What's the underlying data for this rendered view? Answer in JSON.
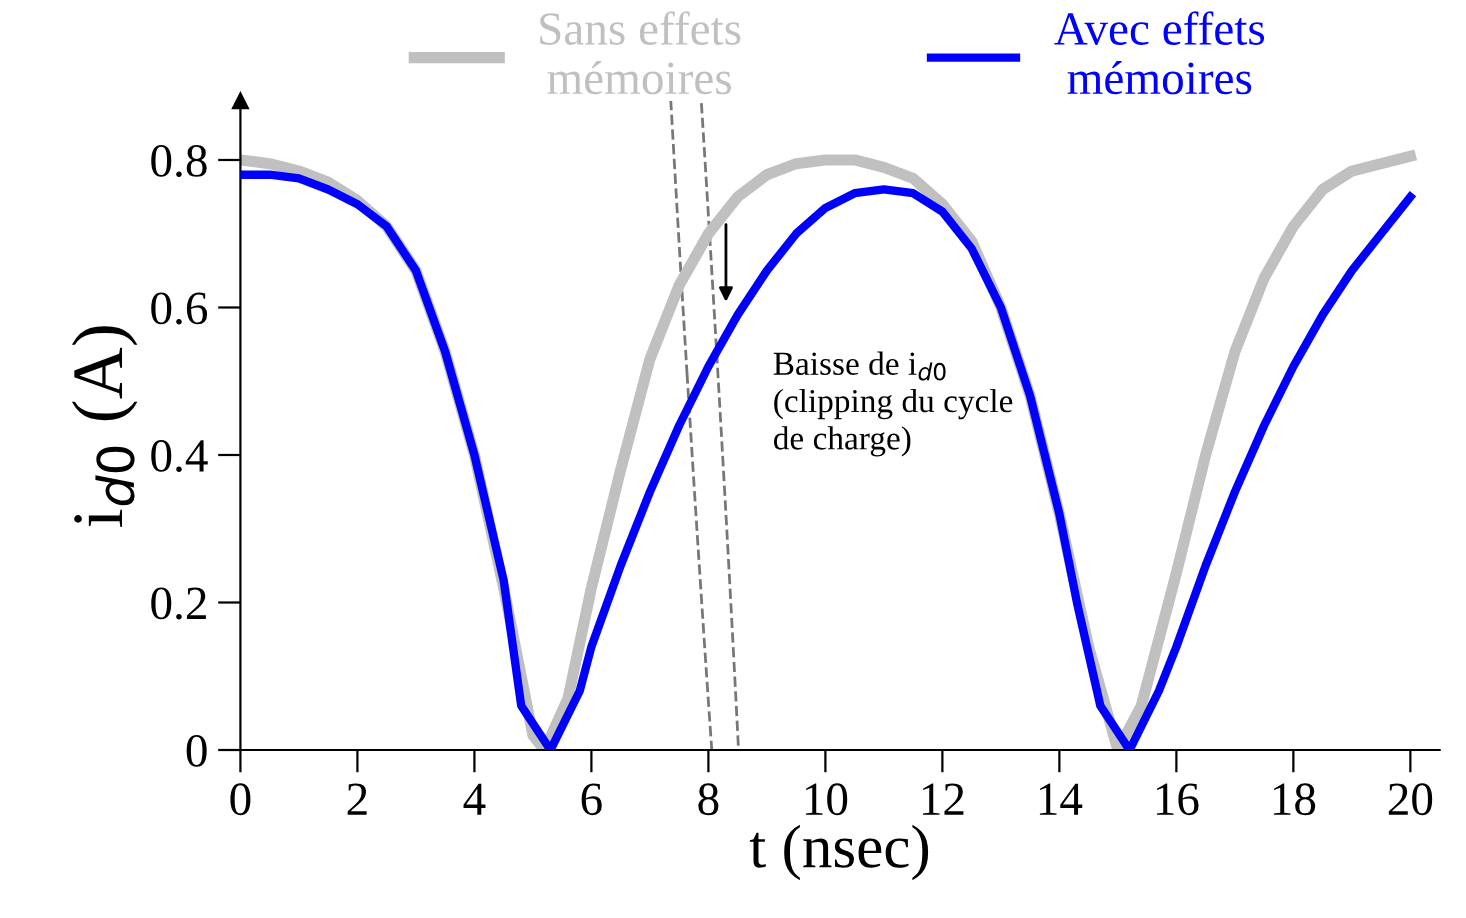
{
  "chart_data": {
    "type": "line",
    "xlabel": "t (nsec)",
    "ylabel": "i$_{d0}$ (A)",
    "xlim": [
      0,
      20.5
    ],
    "xticks": [
      0,
      2,
      4,
      6,
      8,
      10,
      12,
      14,
      16,
      18,
      20
    ],
    "ylim": [
      0,
      0.88
    ],
    "yticks": [
      0,
      0.2,
      0.4,
      0.6,
      0.8
    ],
    "grid": false,
    "legend": "top",
    "marker": "none",
    "line_style": "solid",
    "annotations": [
      {
        "text": "Baisse de i$_{d0}$\n(clipping du cycle\nde charge)",
        "x": 8.3,
        "y": 0.6
      }
    ],
    "series": [
      {
        "name": "Sans effets\nmémoires",
        "color": "#c0c0c0",
        "x": [
          0,
          0.5,
          1,
          1.5,
          2,
          2.5,
          3,
          3.5,
          4,
          4.5,
          5,
          5.2,
          5.6,
          6,
          6.5,
          7,
          7.5,
          8,
          8.5,
          9,
          9.5,
          10,
          10.5,
          11,
          11.5,
          12,
          12.5,
          13,
          13.5,
          14,
          14.5,
          15,
          15.4,
          16,
          16.5,
          17,
          17.5,
          18,
          18.5,
          19,
          19.5,
          20
        ],
        "values": [
          0.8,
          0.795,
          0.785,
          0.77,
          0.745,
          0.71,
          0.65,
          0.54,
          0.4,
          0.22,
          0.02,
          0.0,
          0.07,
          0.22,
          0.38,
          0.53,
          0.63,
          0.7,
          0.75,
          0.78,
          0.795,
          0.8,
          0.8,
          0.79,
          0.775,
          0.74,
          0.69,
          0.6,
          0.48,
          0.32,
          0.14,
          0.0,
          0.06,
          0.24,
          0.4,
          0.54,
          0.64,
          0.71,
          0.76,
          0.785,
          0.795,
          0.805
        ]
      },
      {
        "name": "Avec effets\nmémoires",
        "color": "#0000ff",
        "x": [
          0,
          0.5,
          1,
          1.5,
          2,
          2.5,
          3,
          3.5,
          4,
          4.5,
          4.8,
          5.3,
          5.8,
          6,
          6.5,
          7,
          7.5,
          8,
          8.5,
          9,
          9.5,
          10,
          10.5,
          11,
          11.5,
          12,
          12.5,
          13,
          13.5,
          14,
          14.3,
          14.7,
          15.2,
          15.7,
          16,
          16.5,
          17,
          17.5,
          18,
          18.5,
          19,
          19.5,
          20
        ],
        "values": [
          0.78,
          0.78,
          0.775,
          0.76,
          0.74,
          0.71,
          0.65,
          0.54,
          0.4,
          0.23,
          0.06,
          0.0,
          0.08,
          0.14,
          0.25,
          0.35,
          0.44,
          0.52,
          0.59,
          0.65,
          0.7,
          0.735,
          0.755,
          0.76,
          0.755,
          0.73,
          0.68,
          0.6,
          0.48,
          0.32,
          0.2,
          0.06,
          0.0,
          0.08,
          0.14,
          0.25,
          0.35,
          0.44,
          0.52,
          0.59,
          0.65,
          0.7,
          0.75
        ]
      }
    ]
  }
}
